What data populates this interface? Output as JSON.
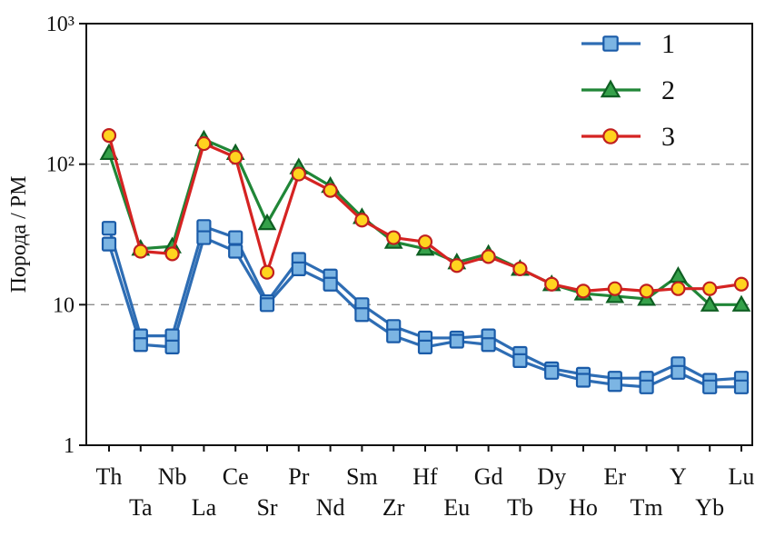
{
  "figure": {
    "background": "#ffffff"
  },
  "chart_data": {
    "type": "line",
    "scale": "log-y",
    "title": "",
    "xlabel": "",
    "ylabel": "Порода / РМ",
    "ylim": [
      1,
      1000
    ],
    "y_tick_values": [
      1,
      10,
      100,
      1000
    ],
    "y_tick_labels": [
      "1",
      "10",
      "10²",
      "10³"
    ],
    "gridlines_y": [
      10,
      100
    ],
    "grid_style": "dashed",
    "legend_position": "top-right-inside",
    "categories": [
      "Th",
      "Ta",
      "Nb",
      "La",
      "Ce",
      "Sr",
      "Pr",
      "Nd",
      "Sm",
      "Zr",
      "Hf",
      "Eu",
      "Gd",
      "Tb",
      "Dy",
      "Ho",
      "Er",
      "Tm",
      "Y",
      "Yb",
      "Lu"
    ],
    "series": [
      {
        "name": "1",
        "marker": "square",
        "line_color": "#2e6db4",
        "marker_fill": "#7cb5e3",
        "marker_stroke": "#1a5ba8",
        "lines": [
          [
            35,
            6,
            6,
            36,
            30,
            10.5,
            21,
            16,
            10,
            7,
            5.8,
            5.8,
            6,
            4.5,
            3.5,
            3.2,
            3,
            3,
            3.8,
            2.9,
            3
          ],
          [
            27,
            5.2,
            5,
            30,
            24,
            10,
            18,
            14,
            8.5,
            6,
            5,
            5.5,
            5.2,
            4,
            3.3,
            2.9,
            2.7,
            2.6,
            3.3,
            2.6,
            2.6
          ]
        ]
      },
      {
        "name": "2",
        "marker": "triangle",
        "line_color": "#208637",
        "marker_fill": "#35a14a",
        "marker_stroke": "#0e5f22",
        "lines": [
          [
            120,
            25,
            26,
            150,
            120,
            38,
            95,
            70,
            42,
            28,
            25,
            20,
            23,
            18,
            14,
            12,
            11.5,
            11,
            16,
            10,
            10
          ]
        ]
      },
      {
        "name": "3",
        "marker": "circle",
        "line_color": "#d52322",
        "marker_fill": "#ffd41f",
        "marker_stroke": "#c01f1f",
        "lines": [
          [
            160,
            24,
            23,
            140,
            112,
            17,
            85,
            65,
            40,
            30,
            28,
            19,
            22,
            18,
            14,
            12.5,
            13,
            12.5,
            13,
            13,
            14
          ]
        ]
      }
    ],
    "legend_entries": [
      "1",
      "2",
      "3"
    ]
  }
}
